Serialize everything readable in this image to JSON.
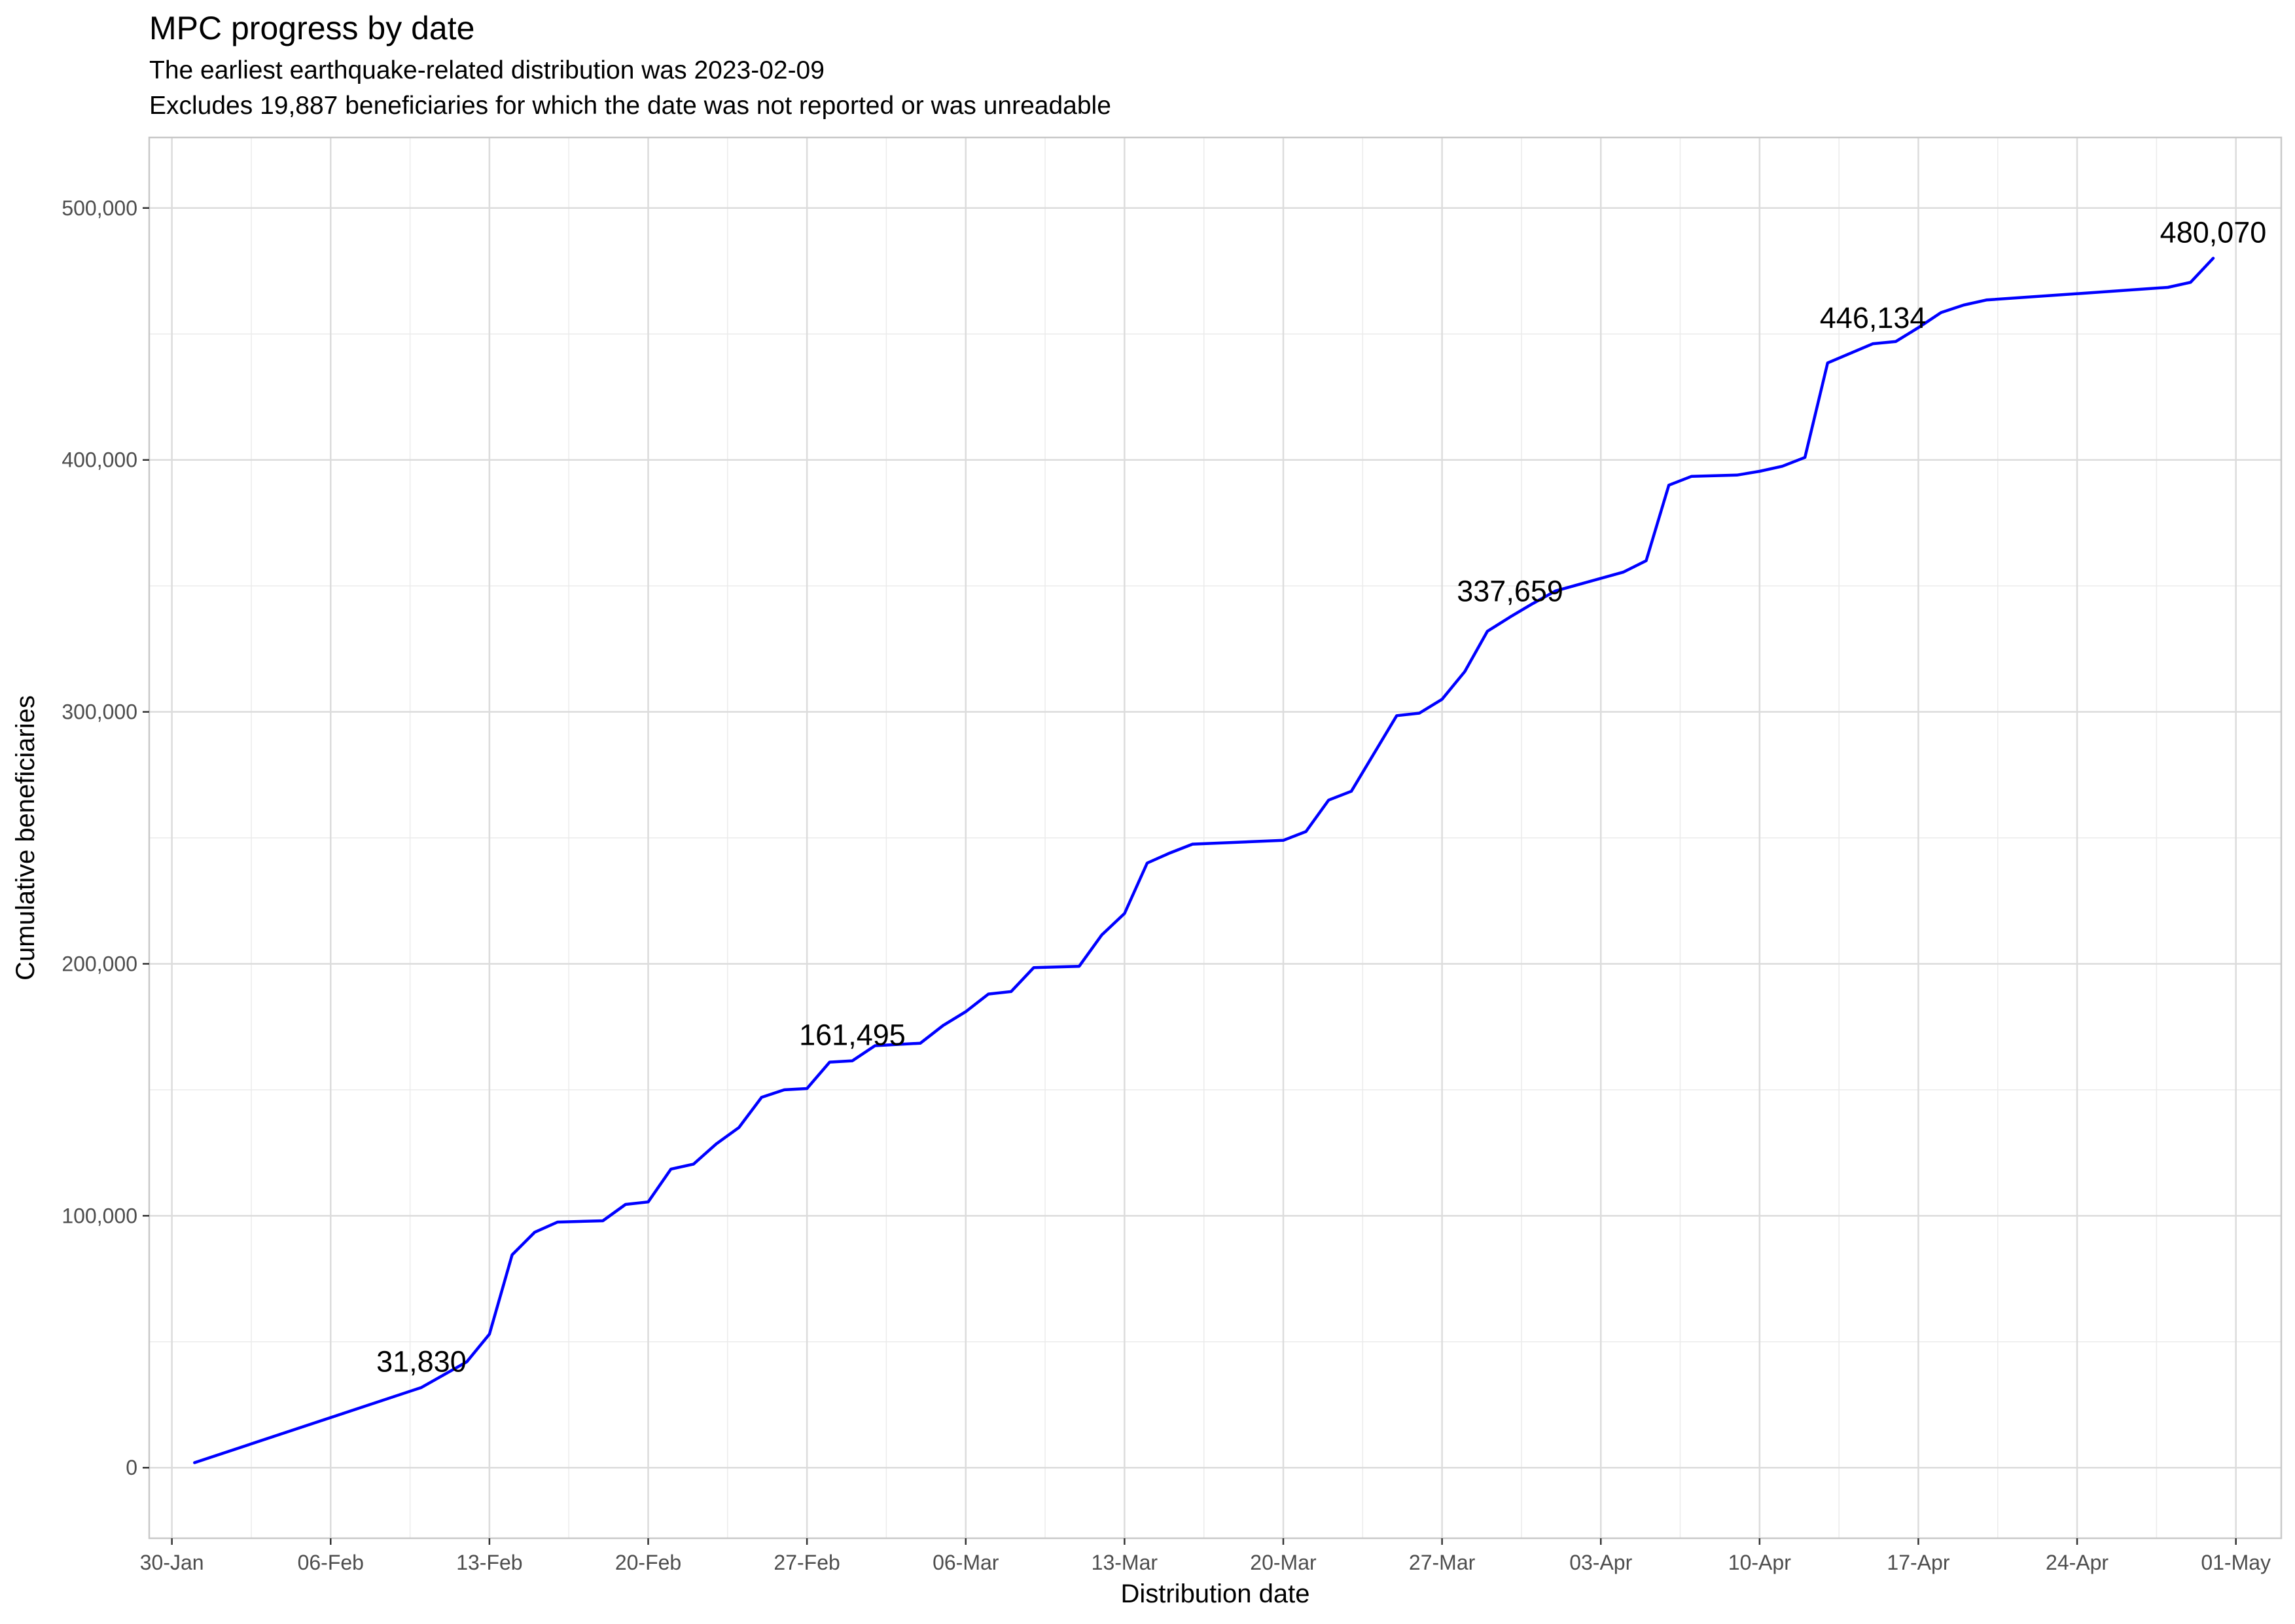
{
  "chart_data": {
    "type": "line",
    "title": "MPC progress by date",
    "subtitle_lines": [
      "The earliest earthquake-related distribution was 2023-02-09",
      "Excludes 19,887 beneficiaries for which the date was not reported or was unreadable"
    ],
    "xlabel": "Distribution date",
    "ylabel": "Cumulative beneficiaries",
    "xlim": [
      "2023-01-29",
      "2023-05-03"
    ],
    "ylim": [
      -28000,
      528000
    ],
    "x_ticks": [
      "30-Jan",
      "06-Feb",
      "13-Feb",
      "20-Feb",
      "27-Feb",
      "06-Mar",
      "13-Mar",
      "20-Mar",
      "27-Mar",
      "03-Apr",
      "10-Apr",
      "17-Apr",
      "24-Apr",
      "01-May"
    ],
    "x_tick_dates": [
      "2023-01-30",
      "2023-02-06",
      "2023-02-13",
      "2023-02-20",
      "2023-02-27",
      "2023-03-06",
      "2023-03-13",
      "2023-03-20",
      "2023-03-27",
      "2023-04-03",
      "2023-04-10",
      "2023-04-17",
      "2023-04-24",
      "2023-05-01"
    ],
    "y_ticks": [
      0,
      100000,
      200000,
      300000,
      400000,
      500000
    ],
    "y_tick_labels": [
      "0",
      "100,000",
      "200,000",
      "300,000",
      "400,000",
      "500,000"
    ],
    "grid": true,
    "line_color": "#0000ff",
    "series": [
      {
        "x": [
          "2023-01-31",
          "2023-02-10",
          "2023-02-12",
          "2023-02-13",
          "2023-02-14",
          "2023-02-15",
          "2023-02-16",
          "2023-02-18",
          "2023-02-19",
          "2023-02-20",
          "2023-02-21",
          "2023-02-22",
          "2023-02-23",
          "2023-02-24",
          "2023-02-25",
          "2023-02-26",
          "2023-02-27",
          "2023-02-28",
          "2023-03-01",
          "2023-03-02",
          "2023-03-04",
          "2023-03-05",
          "2023-03-06",
          "2023-03-07",
          "2023-03-08",
          "2023-03-09",
          "2023-03-11",
          "2023-03-12",
          "2023-03-13",
          "2023-03-14",
          "2023-03-15",
          "2023-03-16",
          "2023-03-20",
          "2023-03-21",
          "2023-03-22",
          "2023-03-23",
          "2023-03-25",
          "2023-03-26",
          "2023-03-27",
          "2023-03-28",
          "2023-03-29",
          "2023-03-30",
          "2023-03-31",
          "2023-04-01",
          "2023-04-04",
          "2023-04-05",
          "2023-04-06",
          "2023-04-07",
          "2023-04-09",
          "2023-04-10",
          "2023-04-11",
          "2023-04-12",
          "2023-04-13",
          "2023-04-15",
          "2023-04-16",
          "2023-04-17",
          "2023-04-18",
          "2023-04-19",
          "2023-04-20",
          "2023-04-28",
          "2023-04-29",
          "2023-04-30"
        ],
        "y": [
          2000,
          31830,
          42000,
          53000,
          84500,
          93500,
          97500,
          98000,
          104500,
          105500,
          118500,
          120500,
          128500,
          135000,
          147000,
          150000,
          150500,
          161000,
          161495,
          167500,
          168500,
          175500,
          181000,
          188000,
          189000,
          198500,
          199000,
          211500,
          220000,
          240000,
          244000,
          247500,
          249000,
          252500,
          265000,
          268500,
          298500,
          299500,
          305000,
          316000,
          332000,
          337659,
          343000,
          348000,
          355500,
          360000,
          390000,
          393500,
          394000,
          395500,
          397500,
          401000,
          438500,
          446134,
          447000,
          452500,
          458500,
          461500,
          463500,
          468500,
          470500,
          480070
        ]
      }
    ],
    "annotations": [
      {
        "label": "31,830",
        "x": "2023-02-10",
        "y": 31830
      },
      {
        "label": "161,495",
        "x": "2023-03-01",
        "y": 161495
      },
      {
        "label": "337,659",
        "x": "2023-03-30",
        "y": 337659
      },
      {
        "label": "446,134",
        "x": "2023-04-15",
        "y": 446134
      },
      {
        "label": "480,070",
        "x": "2023-04-30",
        "y": 480070
      }
    ]
  }
}
